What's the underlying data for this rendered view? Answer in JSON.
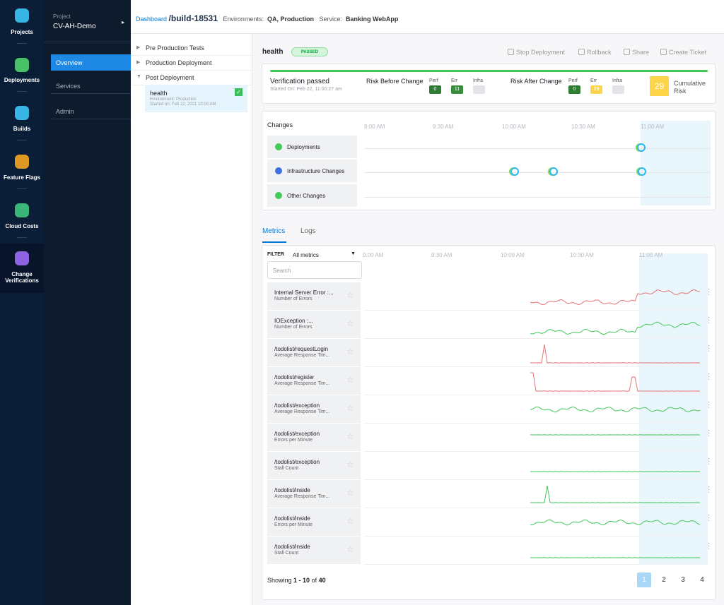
{
  "nav": {
    "items": [
      "Projects",
      "Deployments",
      "Builds",
      "Feature Flags",
      "Cloud Costs",
      "Change Verifications"
    ]
  },
  "project": {
    "label": "Project",
    "name": "CV-AH-Demo",
    "menu": [
      "Overview",
      "Services",
      "Admin"
    ]
  },
  "tree": {
    "groups": [
      "Pre Production Tests",
      "Production Deployment",
      "Post Deployment"
    ],
    "item": {
      "name": "health",
      "environment": "Environment: Production",
      "started": "Started on: Feb 22, 2021 10:00 AM"
    }
  },
  "breadcrumb": {
    "link": "Dashboard",
    "build": "/build-18531",
    "env_label": "Environments:",
    "env": "QA, Production",
    "service_label": "Service:",
    "service": "Banking WebApp"
  },
  "header": {
    "name": "health",
    "status": "PASSED",
    "actions": [
      "Stop Deployment",
      "Rollback",
      "Share",
      "Create Ticket"
    ]
  },
  "summary": {
    "title": "Verification passed",
    "started": "Started On: Feb 22, 11:00:27 am",
    "before": {
      "label": "Risk Before Change",
      "perf_label": "Perf",
      "perf": 0,
      "err_label": "Err",
      "err": 11,
      "infra_label": "Infra"
    },
    "after": {
      "label": "Risk After Change",
      "perf_label": "Perf",
      "perf": 0,
      "err_label": "Err",
      "err": 29,
      "infra_label": "Infra"
    },
    "cumulative": 29,
    "cumulative_label": [
      "Cumulative",
      "Risk"
    ]
  },
  "changes": {
    "title": "Changes",
    "times": [
      "9:00 AM",
      "9:30 AM",
      "10:00 AM",
      "10:30 AM",
      "11:00 AM"
    ],
    "rows": [
      "Deployments",
      "Infrastructure Changes",
      "Other Changes"
    ]
  },
  "tabs": [
    "Metrics",
    "Logs"
  ],
  "metrics": {
    "filter_label": "FILTER",
    "filter": "All metrics",
    "search_placeholder": "Search",
    "times": [
      "9:00 AM",
      "9:30 AM",
      "10:00 AM",
      "10:30 AM",
      "11:00 AM"
    ],
    "rows": [
      {
        "name": "Internal Server Error :...",
        "sub": "Number of Errors"
      },
      {
        "name": "IOException :...",
        "sub": "Number of Errors"
      },
      {
        "name": "/todolist/requestLogin",
        "sub": "Average Response Tim..."
      },
      {
        "name": "/todolist/register",
        "sub": "Average Response Tim..."
      },
      {
        "name": "/todolist/exception",
        "sub": "Average Response Tim..."
      },
      {
        "name": "/todolist/exception",
        "sub": "Errors per Minute"
      },
      {
        "name": "/todolist/exception",
        "sub": "Stall Count"
      },
      {
        "name": "/todolist/inside",
        "sub": "Average Response Tim..."
      },
      {
        "name": "/todolist/inside",
        "sub": "Errors per Minute"
      },
      {
        "name": "/todolist/inside",
        "sub": "Stall Count"
      }
    ]
  },
  "pagination": {
    "prefix": "Showing",
    "range": "1 - 10",
    "of": "of",
    "total": "40",
    "pages": [
      "1",
      "2",
      "3",
      "4"
    ]
  }
}
